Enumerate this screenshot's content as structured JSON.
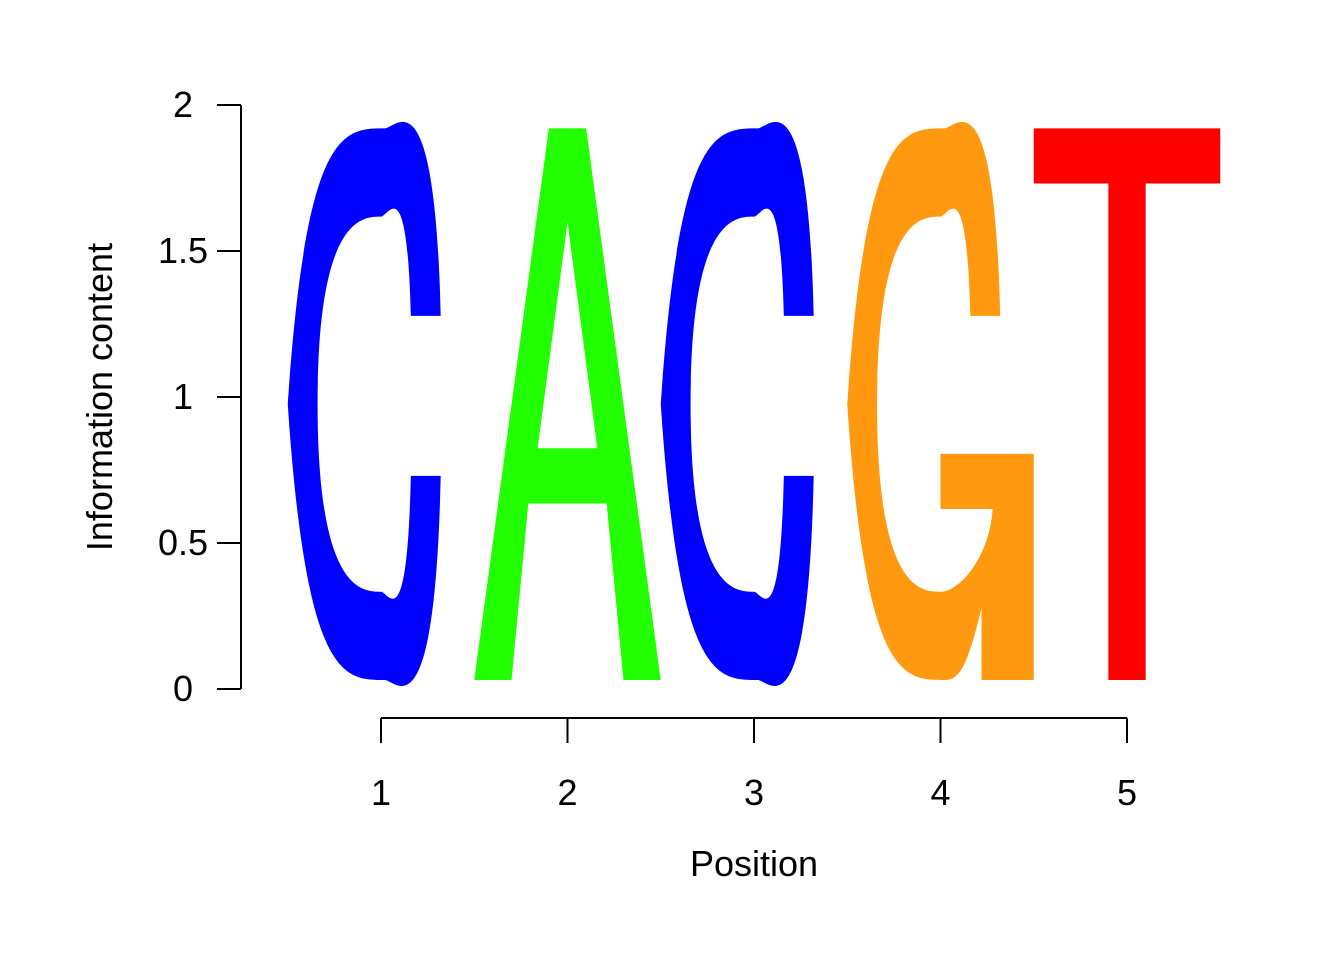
{
  "chart_data": {
    "type": "sequence-logo",
    "xlabel": "Position",
    "ylabel": "Information content",
    "ylim": [
      0,
      2
    ],
    "y_ticks": [
      "0",
      "0.5",
      "1",
      "1.5",
      "2"
    ],
    "x_ticks": [
      "1",
      "2",
      "3",
      "4",
      "5"
    ],
    "positions": [
      1,
      2,
      3,
      4,
      5
    ],
    "letters": [
      "C",
      "A",
      "C",
      "G",
      "T"
    ],
    "values": [
      1.92,
      1.92,
      1.92,
      1.92,
      1.92
    ],
    "colors": {
      "A": "#22ff00",
      "C": "#0000ff",
      "G": "#ff9910",
      "T": "#ff0000"
    },
    "grid": false,
    "legend": "none"
  }
}
